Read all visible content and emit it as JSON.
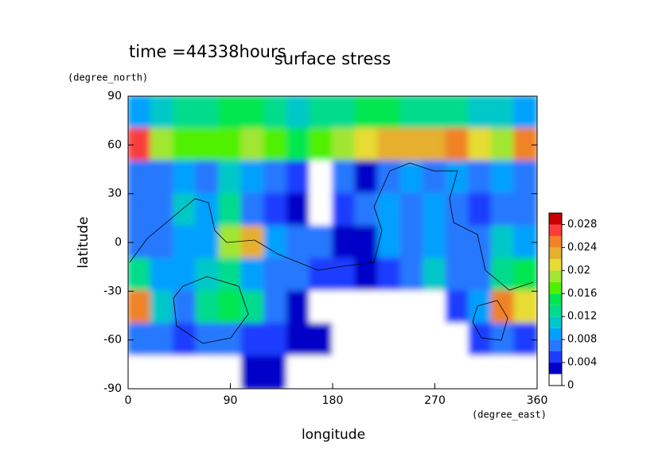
{
  "chart_data": {
    "type": "heatmap",
    "title": "surface stress",
    "subtitle": "time =44338hours",
    "xlabel": "longitude",
    "xunit": "(degree_east)",
    "ylabel": "latitude",
    "yunit": "(degree_north)",
    "xlim": [
      0,
      360
    ],
    "ylim": [
      -90,
      90
    ],
    "xticks": [
      0,
      90,
      180,
      270,
      360
    ],
    "yticks": [
      -90,
      -60,
      -30,
      0,
      30,
      60,
      90
    ],
    "x": [
      10,
      30,
      50,
      70,
      90,
      110,
      130,
      150,
      170,
      190,
      210,
      230,
      250,
      270,
      290,
      310,
      330,
      350
    ],
    "y": [
      80,
      60,
      40,
      20,
      0,
      -20,
      -40,
      -60,
      -80
    ],
    "z": [
      [
        0.008,
        0.01,
        0.012,
        0.012,
        0.014,
        0.014,
        0.012,
        0.01,
        0.012,
        0.012,
        0.014,
        0.014,
        0.012,
        0.012,
        0.012,
        0.01,
        0.01,
        0.008
      ],
      [
        0.026,
        0.018,
        0.016,
        0.016,
        0.016,
        0.018,
        0.016,
        0.014,
        0.016,
        0.018,
        0.02,
        0.022,
        0.022,
        0.022,
        0.024,
        0.02,
        0.018,
        0.024
      ],
      [
        0.006,
        0.006,
        0.008,
        0.006,
        0.01,
        0.008,
        0.006,
        0.004,
        0,
        0.006,
        0.002,
        0.006,
        0.008,
        0.006,
        0.008,
        0.006,
        0.008,
        0.006
      ],
      [
        0.006,
        0.006,
        0.01,
        0.008,
        0.012,
        0.006,
        0.004,
        0.002,
        0,
        0.004,
        0.006,
        0.008,
        0.006,
        0.008,
        0.006,
        0.004,
        0.006,
        0.006
      ],
      [
        0.006,
        0.006,
        0.008,
        0.008,
        0.018,
        0.022,
        0.008,
        0.006,
        0.006,
        0.002,
        0.002,
        0.008,
        0.006,
        0.008,
        0.006,
        0.006,
        0.01,
        0.008
      ],
      [
        0.012,
        0.008,
        0.008,
        0.01,
        0.012,
        0.008,
        0.006,
        0.006,
        0.004,
        0.004,
        0.002,
        0.004,
        0.006,
        0.01,
        0.006,
        0.006,
        0.012,
        0.014
      ],
      [
        0.024,
        0.01,
        0.006,
        0.012,
        0.014,
        0.012,
        0.006,
        0.002,
        0,
        0,
        0,
        0,
        0,
        0,
        0.004,
        0.008,
        0.024,
        0.02
      ],
      [
        0.006,
        0.006,
        0.004,
        0.006,
        0.006,
        0.004,
        0.004,
        0.002,
        0.002,
        0,
        0,
        0,
        0,
        0,
        0,
        0.004,
        0.006,
        0.004
      ],
      [
        0,
        0,
        0,
        0,
        0,
        0.002,
        0.002,
        0,
        0,
        0,
        0,
        0,
        0,
        0,
        0,
        0,
        0,
        0
      ]
    ],
    "colorbar": {
      "levels": [
        0,
        0.002,
        0.004,
        0.006,
        0.008,
        0.01,
        0.012,
        0.014,
        0.016,
        0.018,
        0.02,
        0.022,
        0.024,
        0.026,
        0.028,
        0.03
      ],
      "colors": [
        "#ffffff",
        "#0000c8",
        "#1e3cff",
        "#2878ff",
        "#00a0ff",
        "#00c8c8",
        "#00dc8c",
        "#00e650",
        "#50f000",
        "#a0e632",
        "#e6dc32",
        "#e6af2d",
        "#f08228",
        "#fa3c3c",
        "#c80000"
      ],
      "ticks": [
        0,
        0.004,
        0.008,
        0.012,
        0.016,
        0.02,
        0.024,
        0.028
      ]
    }
  }
}
